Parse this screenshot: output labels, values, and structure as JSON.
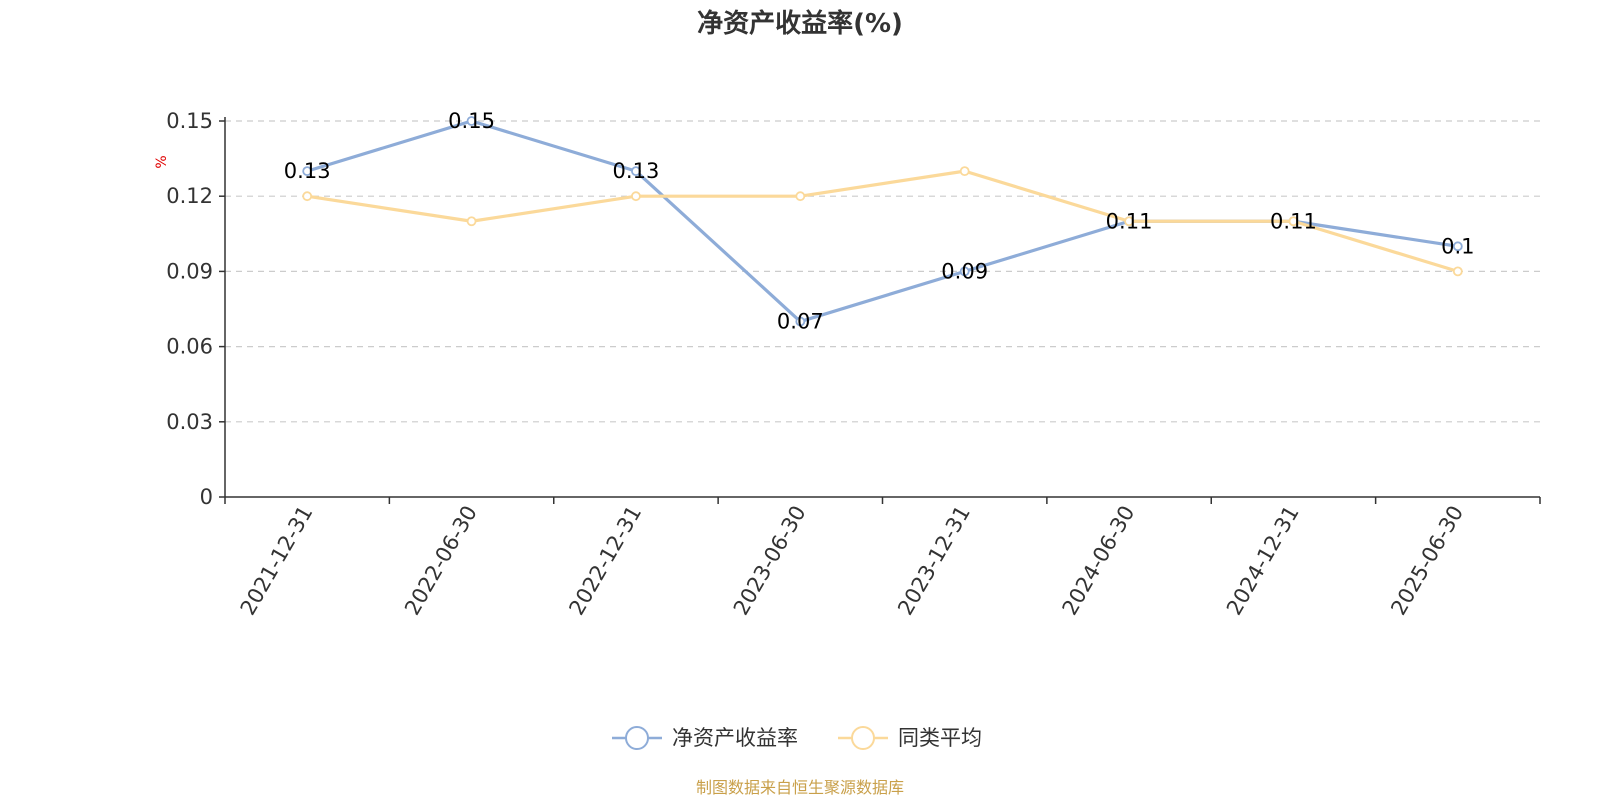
{
  "chart_data": {
    "type": "line",
    "title": "净资产收益率(%)",
    "ylabel": "%",
    "categories": [
      "2021-12-31",
      "2022-06-30",
      "2022-12-31",
      "2023-06-30",
      "2023-12-31",
      "2024-06-30",
      "2024-12-31",
      "2025-06-30"
    ],
    "ylim": [
      0,
      0.15
    ],
    "yticks": [
      "0",
      "0.03",
      "0.06",
      "0.09",
      "0.12",
      "0.15"
    ],
    "grid": true,
    "legend_position": "bottom",
    "series": [
      {
        "name": "净资产收益率",
        "color": "#8eacd8",
        "values": [
          0.13,
          0.15,
          0.13,
          0.07,
          0.09,
          0.11,
          0.11,
          0.1
        ],
        "labels": [
          "0.13",
          "0.15",
          "0.13",
          "0.07",
          "0.09",
          "0.11",
          "0.11",
          "0.1"
        ]
      },
      {
        "name": "同类平均",
        "color": "#fbd99a",
        "values": [
          0.12,
          0.11,
          0.12,
          0.12,
          0.13,
          0.11,
          0.11,
          0.09
        ]
      }
    ],
    "source": "制图数据来自恒生聚源数据库"
  }
}
